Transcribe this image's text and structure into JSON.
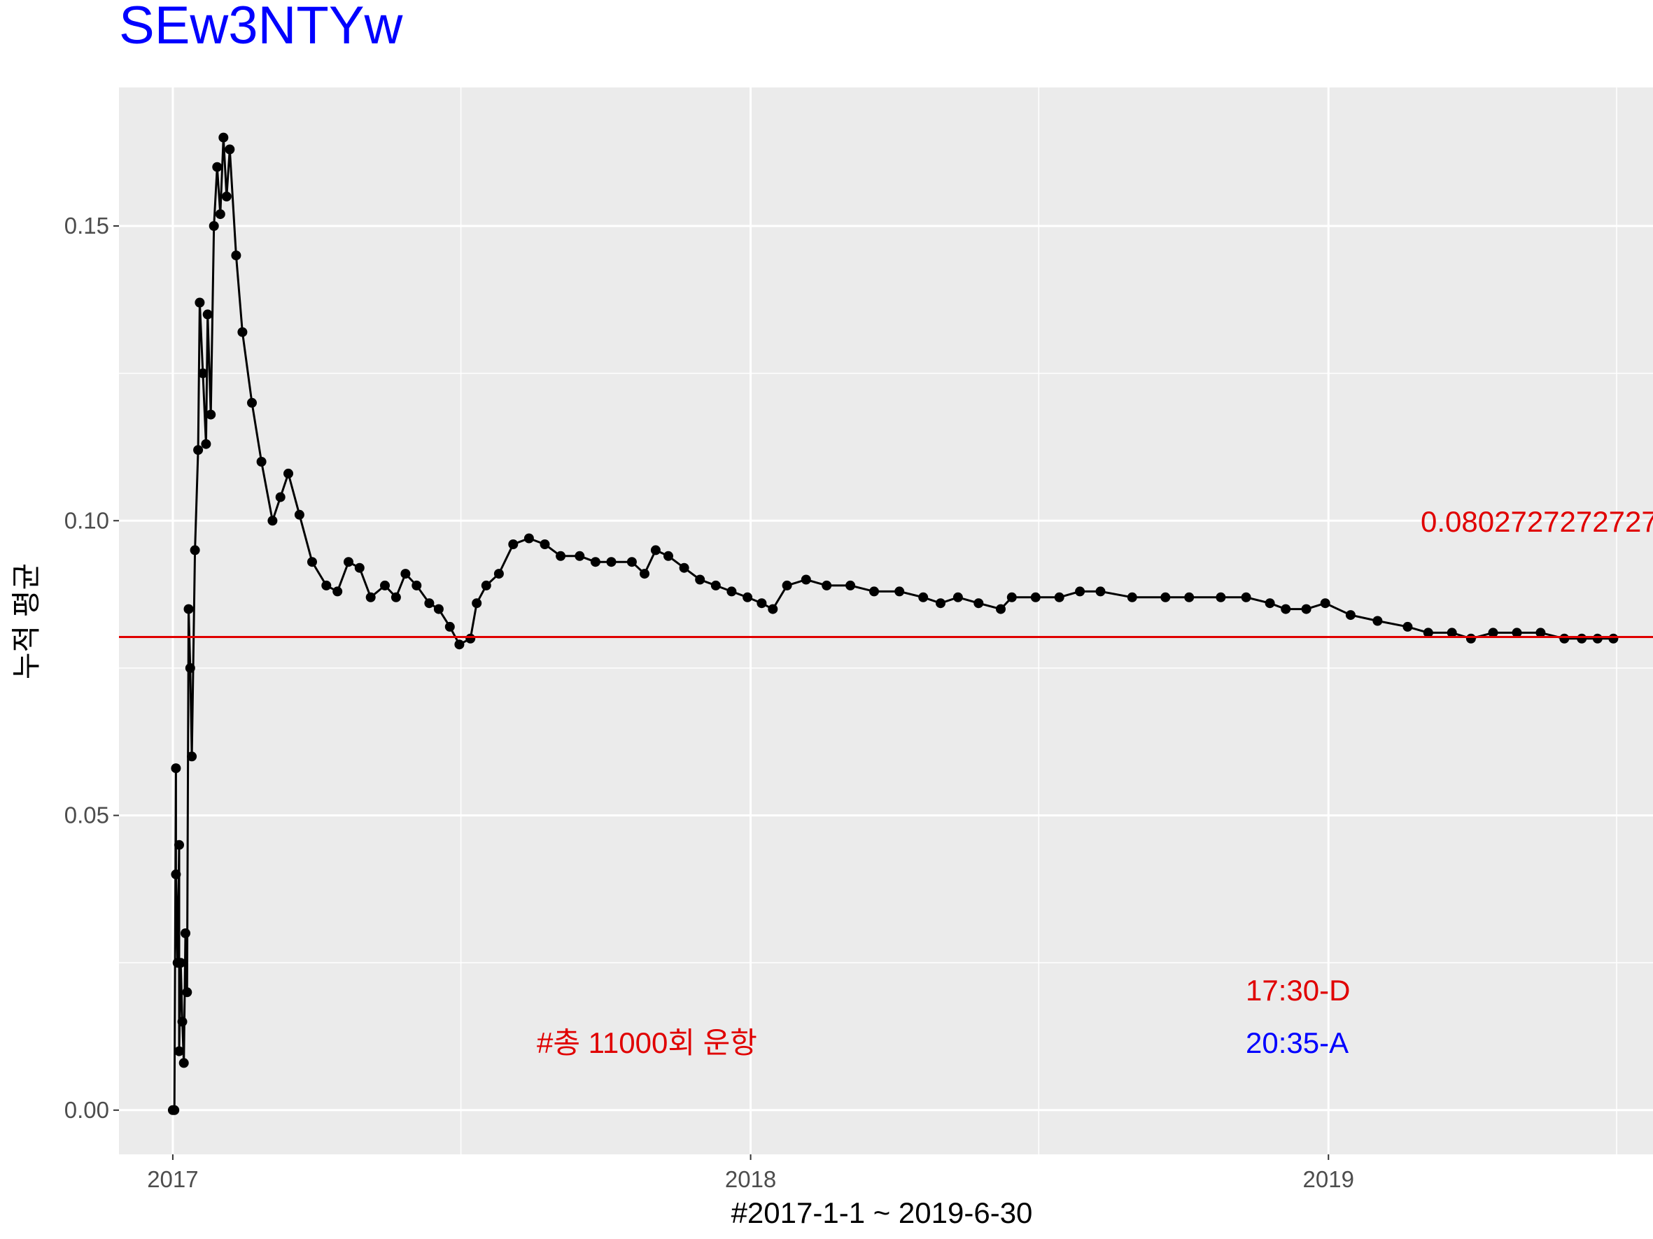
{
  "chart_data": {
    "type": "line",
    "title": "SEw3NTYw",
    "xlabel": "#2017-1-1 ~ 2019-6-30",
    "ylabel": "누적 평균",
    "x_tick_labels": [
      "2017",
      "2018",
      "2019"
    ],
    "y_tick_labels": [
      "0.00",
      "0.05",
      "0.10",
      "0.15"
    ],
    "xlim": [
      "2016-11-28",
      "2019-07-25"
    ],
    "ylim": [
      -0.0075,
      0.1735
    ],
    "grid": true,
    "colors": {
      "panel": "#ebebeb",
      "grid": "#ffffff",
      "line": "#000000",
      "hline": "#e00000",
      "title": "#0000ff",
      "annot_red": "#e00000",
      "annot_blue": "#0000ff"
    },
    "hline": {
      "y": 0.0802727272727,
      "label": "0.0802727272727"
    },
    "annotations": {
      "total": "#총 11000회 운항",
      "departure": "17:30-D",
      "arrival": "20:35-A"
    },
    "series": [
      {
        "points": [
          [
            "2017-01-01",
            0.0
          ],
          [
            "2017-01-02",
            0.0
          ],
          [
            "2017-01-03",
            0.058
          ],
          [
            "2017-01-03",
            0.04
          ],
          [
            "2017-01-04",
            0.025
          ],
          [
            "2017-01-05",
            0.045
          ],
          [
            "2017-01-05",
            0.01
          ],
          [
            "2017-01-06",
            0.025
          ],
          [
            "2017-01-07",
            0.015
          ],
          [
            "2017-01-08",
            0.008
          ],
          [
            "2017-01-09",
            0.03
          ],
          [
            "2017-01-10",
            0.02
          ],
          [
            "2017-01-11",
            0.085
          ],
          [
            "2017-01-12",
            0.075
          ],
          [
            "2017-01-13",
            0.06
          ],
          [
            "2017-01-15",
            0.095
          ],
          [
            "2017-01-17",
            0.112
          ],
          [
            "2017-01-18",
            0.137
          ],
          [
            "2017-01-20",
            0.125
          ],
          [
            "2017-01-22",
            0.113
          ],
          [
            "2017-01-23",
            0.135
          ],
          [
            "2017-01-25",
            0.118
          ],
          [
            "2017-01-27",
            0.15
          ],
          [
            "2017-01-29",
            0.16
          ],
          [
            "2017-01-31",
            0.152
          ],
          [
            "2017-02-02",
            0.165
          ],
          [
            "2017-02-04",
            0.155
          ],
          [
            "2017-02-06",
            0.163
          ],
          [
            "2017-02-10",
            0.145
          ],
          [
            "2017-02-14",
            0.132
          ],
          [
            "2017-02-20",
            0.12
          ],
          [
            "2017-02-26",
            0.11
          ],
          [
            "2017-03-05",
            0.1
          ],
          [
            "2017-03-10",
            0.104
          ],
          [
            "2017-03-15",
            0.108
          ],
          [
            "2017-03-22",
            0.101
          ],
          [
            "2017-03-30",
            0.093
          ],
          [
            "2017-04-08",
            0.089
          ],
          [
            "2017-04-15",
            0.088
          ],
          [
            "2017-04-22",
            0.093
          ],
          [
            "2017-04-29",
            0.092
          ],
          [
            "2017-05-06",
            0.087
          ],
          [
            "2017-05-15",
            0.089
          ],
          [
            "2017-05-22",
            0.087
          ],
          [
            "2017-05-28",
            0.091
          ],
          [
            "2017-06-04",
            0.089
          ],
          [
            "2017-06-12",
            0.086
          ],
          [
            "2017-06-18",
            0.085
          ],
          [
            "2017-06-25",
            0.082
          ],
          [
            "2017-07-01",
            0.079
          ],
          [
            "2017-07-08",
            0.08
          ],
          [
            "2017-07-12",
            0.086
          ],
          [
            "2017-07-18",
            0.089
          ],
          [
            "2017-07-26",
            0.091
          ],
          [
            "2017-08-04",
            0.096
          ],
          [
            "2017-08-14",
            0.097
          ],
          [
            "2017-08-24",
            0.096
          ],
          [
            "2017-09-03",
            0.094
          ],
          [
            "2017-09-15",
            0.094
          ],
          [
            "2017-09-25",
            0.093
          ],
          [
            "2017-10-05",
            0.093
          ],
          [
            "2017-10-18",
            0.093
          ],
          [
            "2017-10-26",
            0.091
          ],
          [
            "2017-11-02",
            0.095
          ],
          [
            "2017-11-10",
            0.094
          ],
          [
            "2017-11-20",
            0.092
          ],
          [
            "2017-11-30",
            0.09
          ],
          [
            "2017-12-10",
            0.089
          ],
          [
            "2017-12-20",
            0.088
          ],
          [
            "2017-12-30",
            0.087
          ],
          [
            "2018-01-08",
            0.086
          ],
          [
            "2018-01-15",
            0.085
          ],
          [
            "2018-01-24",
            0.089
          ],
          [
            "2018-02-05",
            0.09
          ],
          [
            "2018-02-18",
            0.089
          ],
          [
            "2018-03-05",
            0.089
          ],
          [
            "2018-03-20",
            0.088
          ],
          [
            "2018-04-05",
            0.088
          ],
          [
            "2018-04-20",
            0.087
          ],
          [
            "2018-05-01",
            0.086
          ],
          [
            "2018-05-12",
            0.087
          ],
          [
            "2018-05-25",
            0.086
          ],
          [
            "2018-06-08",
            0.085
          ],
          [
            "2018-06-15",
            0.087
          ],
          [
            "2018-06-30",
            0.087
          ],
          [
            "2018-07-15",
            0.087
          ],
          [
            "2018-07-28",
            0.088
          ],
          [
            "2018-08-10",
            0.088
          ],
          [
            "2018-08-30",
            0.087
          ],
          [
            "2018-09-20",
            0.087
          ],
          [
            "2018-10-05",
            0.087
          ],
          [
            "2018-10-25",
            0.087
          ],
          [
            "2018-11-10",
            0.087
          ],
          [
            "2018-11-25",
            0.086
          ],
          [
            "2018-12-05",
            0.085
          ],
          [
            "2018-12-18",
            0.085
          ],
          [
            "2018-12-30",
            0.086
          ],
          [
            "2019-01-15",
            0.084
          ],
          [
            "2019-02-01",
            0.083
          ],
          [
            "2019-02-20",
            0.082
          ],
          [
            "2019-03-05",
            0.081
          ],
          [
            "2019-03-20",
            0.081
          ],
          [
            "2019-04-01",
            0.08
          ],
          [
            "2019-04-15",
            0.081
          ],
          [
            "2019-04-30",
            0.081
          ],
          [
            "2019-05-15",
            0.081
          ],
          [
            "2019-05-30",
            0.08
          ],
          [
            "2019-06-10",
            0.08
          ],
          [
            "2019-06-20",
            0.08
          ],
          [
            "2019-06-30",
            0.08
          ]
        ]
      }
    ]
  }
}
